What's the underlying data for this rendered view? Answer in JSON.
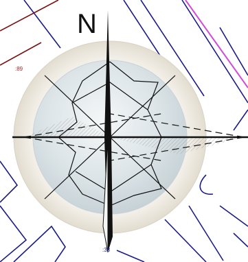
{
  "map": {
    "north_label": "N",
    "labels": {
      "left": ":89",
      "bottom": ":38"
    }
  },
  "colors": {
    "parcel_line": "#1a1a8c",
    "road_line": "#7a1010",
    "highlight_line": "#d24ad8",
    "rose_ring": "#efece4",
    "rose_disk": "#d6dfe3",
    "rose_ink": "#111111",
    "label_red": "#b22222",
    "label_blue": "#1a1a8c"
  },
  "icons": {
    "compass": "compass-rose-icon"
  }
}
